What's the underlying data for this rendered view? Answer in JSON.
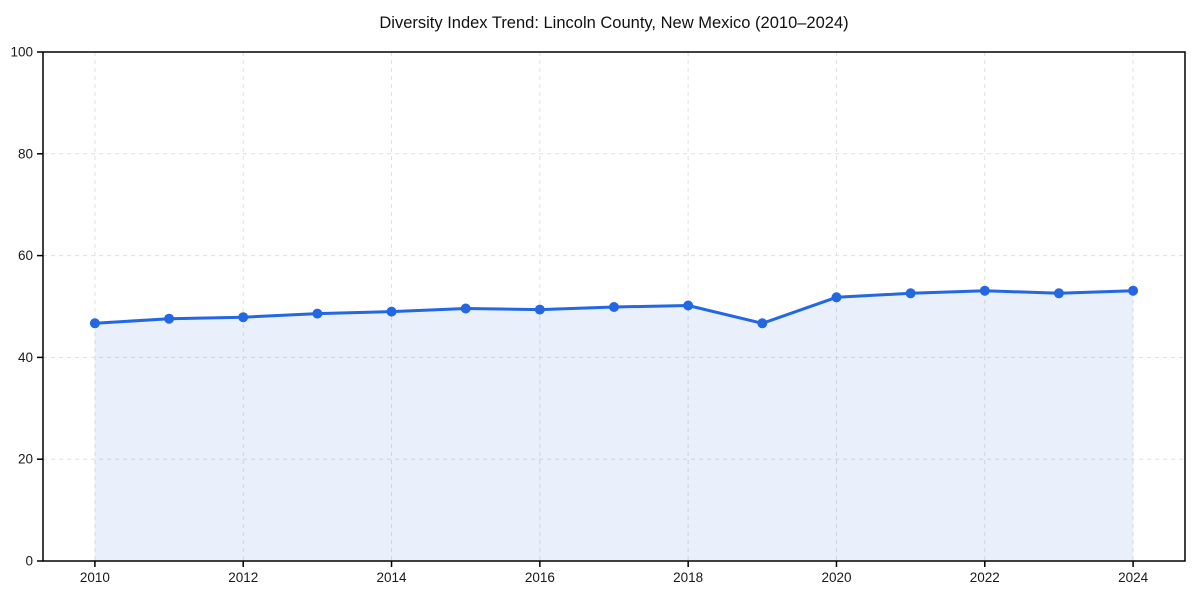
{
  "page": {
    "background": "#ffffff"
  },
  "chart_data": {
    "type": "line",
    "title": "Diversity Index Trend: Lincoln County, New Mexico (2010–2024)",
    "x": [
      2010,
      2011,
      2012,
      2013,
      2014,
      2015,
      2016,
      2017,
      2018,
      2019,
      2020,
      2021,
      2022,
      2023,
      2024
    ],
    "series": [
      {
        "name": "Diversity Index",
        "values": [
          46.7,
          47.6,
          47.9,
          48.6,
          49.0,
          49.6,
          49.4,
          49.9,
          50.2,
          46.7,
          51.8,
          52.6,
          53.1,
          52.6,
          53.1
        ]
      }
    ],
    "xlabel": "",
    "ylabel": "",
    "xlim": [
      2009.3,
      2024.7
    ],
    "ylim": [
      0,
      100
    ],
    "x_ticks": [
      2010,
      2012,
      2014,
      2016,
      2018,
      2020,
      2022,
      2024
    ],
    "y_ticks": [
      0,
      20,
      40,
      60,
      80,
      100
    ],
    "grid": "dashed",
    "legend": "none",
    "fill_under": true,
    "style": {
      "line_color": "#2367e2",
      "marker": "circle",
      "marker_radius": 5,
      "line_width": 3,
      "fill_opacity": 0.1,
      "grid_color": "#e0e0e0",
      "axis_color": "#000000",
      "tick_label_color": "#1a1a1a",
      "tick_font_size": 13.5,
      "title_color": "#111111"
    }
  }
}
